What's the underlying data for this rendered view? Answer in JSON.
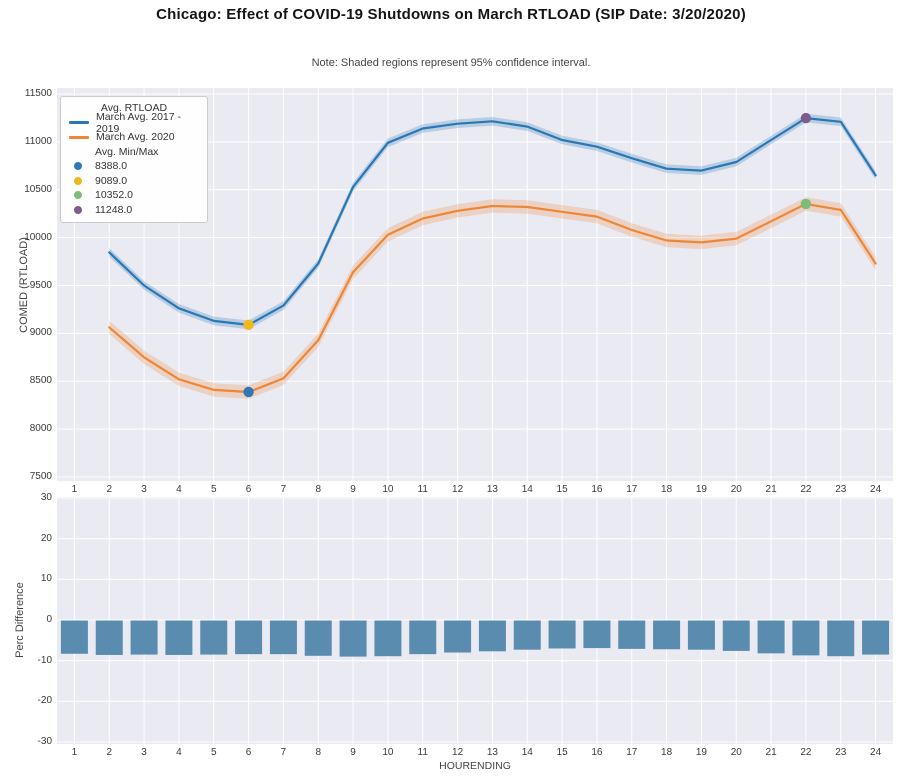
{
  "title": "Chicago: Effect of COVID-19 Shutdowns on March RTLOAD (SIP Date: 3/20/2020)",
  "note": "Note: Shaded regions represent 95% confidence interval.",
  "colors": {
    "plot_bg": "#e9eaf2",
    "grid": "#ffffff",
    "blue_line": "#2878b5",
    "blue_band": "rgba(40,120,181,0.25)",
    "orange_line": "#ee8636",
    "orange_band": "rgba(238,134,54,0.25)",
    "bar": "#5a8cb0",
    "dot_blue": "#2e78b8",
    "dot_yellow": "#f2b61e",
    "dot_green": "#7cbd7c",
    "dot_purple": "#7c5b8d"
  },
  "legend": {
    "title": "Avg. RTLOAD",
    "subtitle": "Avg. Min/Max",
    "lines": [
      {
        "label": "March Avg. 2017 - 2019",
        "color_key": "blue_line"
      },
      {
        "label": "March Avg. 2020",
        "color_key": "orange_line"
      }
    ],
    "points": [
      {
        "label": "8388.0",
        "color_key": "dot_blue"
      },
      {
        "label": "9089.0",
        "color_key": "dot_yellow"
      },
      {
        "label": "10352.0",
        "color_key": "dot_green"
      },
      {
        "label": "11248.0",
        "color_key": "dot_purple"
      }
    ]
  },
  "chart_data": [
    {
      "type": "line",
      "ylabel": "COMED (RTLOAD)",
      "ylim": [
        7450,
        11560
      ],
      "yticks": [
        7500,
        8000,
        8500,
        9000,
        9500,
        10000,
        10500,
        11000,
        11500
      ],
      "xticks": [
        1,
        2,
        3,
        4,
        5,
        6,
        7,
        8,
        9,
        10,
        11,
        12,
        13,
        14,
        15,
        16,
        17,
        18,
        19,
        20,
        21,
        22,
        23,
        24
      ],
      "x": [
        2,
        3,
        4,
        5,
        6,
        7,
        8,
        9,
        10,
        11,
        12,
        13,
        14,
        15,
        16,
        17,
        18,
        19,
        20,
        21,
        22,
        23,
        24
      ],
      "series": [
        {
          "name": "March Avg. 2017 - 2019",
          "color_key": "blue_line",
          "band_key": "blue_band",
          "ci": 45,
          "values": [
            9846,
            9500,
            9262,
            9130,
            9089,
            9290,
            9730,
            10530,
            10990,
            11140,
            11190,
            11215,
            11160,
            11020,
            10950,
            10830,
            10720,
            10700,
            10790,
            11020,
            11248,
            11210,
            10650
          ]
        },
        {
          "name": "March Avg. 2020",
          "color_key": "orange_line",
          "band_key": "orange_band",
          "ci": 70,
          "values": [
            9062,
            8750,
            8520,
            8410,
            8388,
            8530,
            8930,
            9640,
            10030,
            10200,
            10280,
            10330,
            10320,
            10270,
            10220,
            10080,
            9970,
            9950,
            9990,
            10170,
            10352,
            10290,
            9730
          ]
        }
      ],
      "minmax_points": [
        {
          "x": 6,
          "y": 8388.0,
          "color_key": "dot_blue"
        },
        {
          "x": 6,
          "y": 9089.0,
          "color_key": "dot_yellow"
        },
        {
          "x": 22,
          "y": 10352.0,
          "color_key": "dot_green"
        },
        {
          "x": 22,
          "y": 11248.0,
          "color_key": "dot_purple"
        }
      ]
    },
    {
      "type": "bar",
      "ylabel": "Perc Difference",
      "xlabel": "HOURENDING",
      "ylim": [
        -30,
        30
      ],
      "yticks": [
        30,
        20,
        10,
        0,
        -10,
        -20,
        -30
      ],
      "xticks": [
        1,
        2,
        3,
        4,
        5,
        6,
        7,
        8,
        9,
        10,
        11,
        12,
        13,
        14,
        15,
        16,
        17,
        18,
        19,
        20,
        21,
        22,
        23,
        24
      ],
      "categories": [
        1,
        2,
        3,
        4,
        5,
        6,
        7,
        8,
        9,
        10,
        11,
        12,
        13,
        14,
        15,
        16,
        17,
        18,
        19,
        20,
        21,
        22,
        23,
        24
      ],
      "values": [
        -8.3,
        -8.6,
        -8.5,
        -8.6,
        -8.5,
        -8.4,
        -8.4,
        -8.8,
        -9.0,
        -8.9,
        -8.4,
        -8.0,
        -7.7,
        -7.3,
        -7.0,
        -6.9,
        -7.1,
        -7.2,
        -7.3,
        -7.6,
        -8.2,
        -8.7,
        -8.9,
        -8.5
      ]
    }
  ]
}
